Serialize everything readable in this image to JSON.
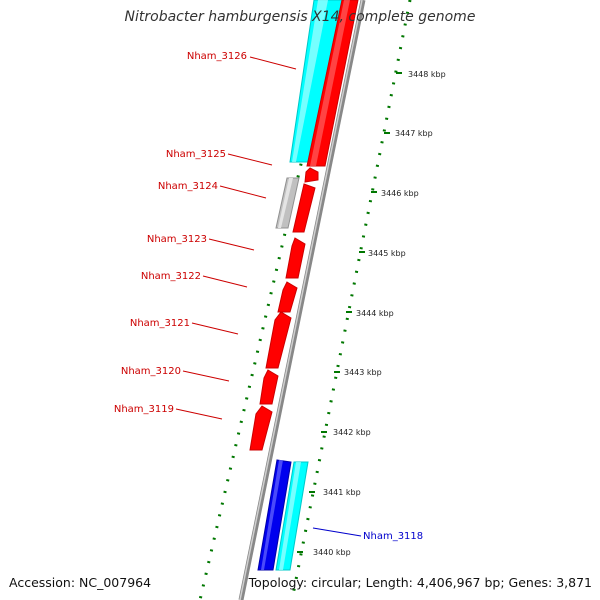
{
  "title": "Nitrobacter hamburgensis X14, complete genome",
  "footer": {
    "accession": "Accession: NC_007964",
    "summary": "Topology: circular; Length: 4,406,967 bp; Genes: 3,871"
  },
  "colors": {
    "forward_cds": "#ff0000",
    "reverse_cds": "#00ffff",
    "other_gene": "#c0c0c0",
    "blue_gene": "#0000ee",
    "backbone": "#888888",
    "tick": "#007700",
    "label_red": "#cc0000",
    "label_blue": "#0000cc"
  },
  "kbp_ticks": [
    {
      "label": "3448 kbp",
      "kbp": 3448
    },
    {
      "label": "3447 kbp",
      "kbp": 3447
    },
    {
      "label": "3446 kbp",
      "kbp": 3446
    },
    {
      "label": "3445 kbp",
      "kbp": 3445
    },
    {
      "label": "3444 kbp",
      "kbp": 3444
    },
    {
      "label": "3443 kbp",
      "kbp": 3443
    },
    {
      "label": "3442 kbp",
      "kbp": 3442
    },
    {
      "label": "3441 kbp",
      "kbp": 3441
    },
    {
      "label": "3440 kbp",
      "kbp": 3440
    }
  ],
  "gene_labels": [
    {
      "name": "Nham_3126",
      "color": "label_red"
    },
    {
      "name": "Nham_3125",
      "color": "label_red"
    },
    {
      "name": "Nham_3124",
      "color": "label_red"
    },
    {
      "name": "Nham_3123",
      "color": "label_red"
    },
    {
      "name": "Nham_3122",
      "color": "label_red"
    },
    {
      "name": "Nham_3121",
      "color": "label_red"
    },
    {
      "name": "Nham_3120",
      "color": "label_red"
    },
    {
      "name": "Nham_3119",
      "color": "label_red"
    },
    {
      "name": "Nham_3118",
      "color": "label_blue"
    }
  ]
}
